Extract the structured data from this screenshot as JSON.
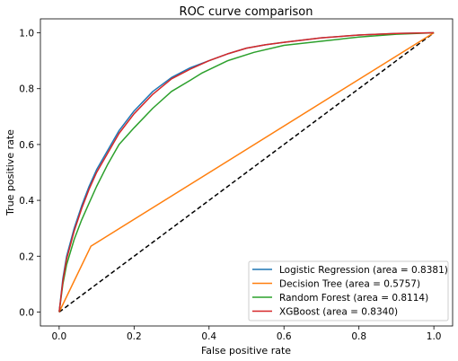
{
  "chart_data": {
    "type": "line",
    "title": "ROC curve comparison",
    "xlabel": "False positive rate",
    "ylabel": "True positive rate",
    "xlim": [
      -0.05,
      1.05
    ],
    "ylim": [
      -0.05,
      1.05
    ],
    "xticks": [
      0.0,
      0.2,
      0.4,
      0.6,
      0.8,
      1.0
    ],
    "yticks": [
      0.0,
      0.2,
      0.4,
      0.6,
      0.8,
      1.0
    ],
    "xtick_labels": [
      "0.0",
      "0.2",
      "0.4",
      "0.6",
      "0.8",
      "1.0"
    ],
    "ytick_labels": [
      "0.0",
      "0.2",
      "0.4",
      "0.6",
      "0.8",
      "1.0"
    ],
    "grid": false,
    "legend_position": "lower-right",
    "series": [
      {
        "name": "Logistic Regression (area = 0.8381)",
        "color": "#1f77b4",
        "x": [
          0,
          0.01,
          0.02,
          0.04,
          0.06,
          0.08,
          0.1,
          0.13,
          0.16,
          0.2,
          0.25,
          0.3,
          0.35,
          0.4,
          0.45,
          0.5,
          0.55,
          0.6,
          0.7,
          0.8,
          0.9,
          1.0
        ],
        "y": [
          0,
          0.12,
          0.2,
          0.3,
          0.38,
          0.45,
          0.51,
          0.58,
          0.65,
          0.72,
          0.79,
          0.84,
          0.875,
          0.9,
          0.925,
          0.945,
          0.957,
          0.966,
          0.982,
          0.992,
          0.998,
          1.0
        ]
      },
      {
        "name": "Decision Tree (area = 0.5757)",
        "color": "#ff7f0e",
        "x": [
          0,
          0.085,
          1.0
        ],
        "y": [
          0,
          0.236,
          1.0
        ]
      },
      {
        "name": "Random Forest (area = 0.8114)",
        "color": "#2ca02c",
        "x": [
          0,
          0.01,
          0.02,
          0.04,
          0.06,
          0.08,
          0.1,
          0.13,
          0.16,
          0.2,
          0.25,
          0.3,
          0.35,
          0.38,
          0.45,
          0.52,
          0.6,
          0.7,
          0.8,
          0.9,
          1.0
        ],
        "y": [
          0,
          0.1,
          0.17,
          0.26,
          0.33,
          0.39,
          0.45,
          0.53,
          0.6,
          0.66,
          0.73,
          0.79,
          0.83,
          0.855,
          0.9,
          0.93,
          0.955,
          0.97,
          0.985,
          0.995,
          1.0
        ]
      },
      {
        "name": "XGBoost (area = 0.8340)",
        "color": "#d62728",
        "x": [
          0,
          0.01,
          0.02,
          0.04,
          0.06,
          0.08,
          0.1,
          0.13,
          0.16,
          0.2,
          0.25,
          0.3,
          0.35,
          0.4,
          0.45,
          0.5,
          0.55,
          0.6,
          0.7,
          0.8,
          0.9,
          1.0
        ],
        "y": [
          0,
          0.11,
          0.19,
          0.29,
          0.37,
          0.44,
          0.5,
          0.57,
          0.64,
          0.71,
          0.78,
          0.835,
          0.87,
          0.9,
          0.925,
          0.945,
          0.957,
          0.966,
          0.982,
          0.992,
          0.998,
          1.0
        ]
      }
    ],
    "reference_line": {
      "style": "dashed",
      "color": "#000000",
      "x": [
        0,
        1
      ],
      "y": [
        0,
        1
      ]
    }
  }
}
